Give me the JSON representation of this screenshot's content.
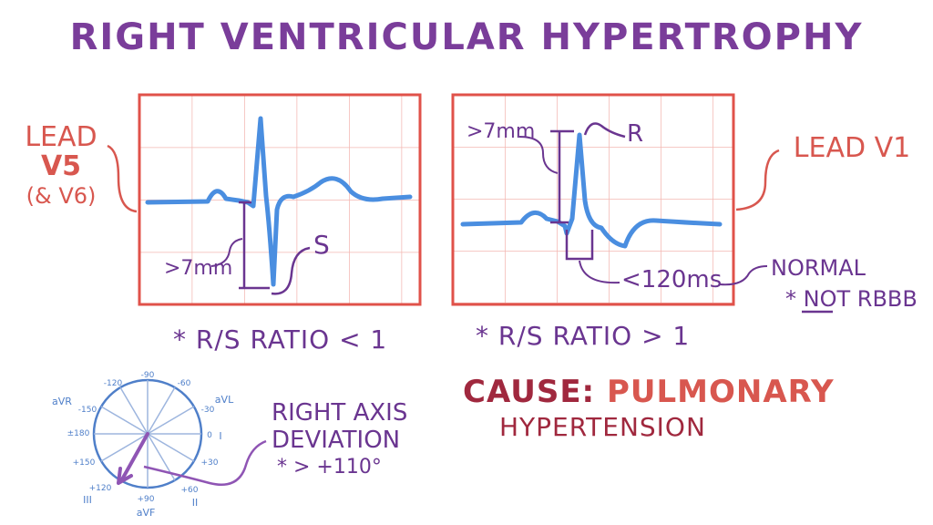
{
  "title": "RIGHT VENTRICULAR HYPERTROPHY",
  "left_panel": {
    "lead_line1": "LEAD",
    "lead_line2": "V5",
    "lead_line3": "(& V6)",
    "measure": ">7mm",
    "wave_label": "S",
    "ratio": "* R/S RATIO < 1"
  },
  "right_panel": {
    "lead": "LEAD V1",
    "measure": ">7mm",
    "wave_label": "R",
    "duration": "<120ms",
    "normal": "NORMAL",
    "not_rbbb": "* NOT RBBB",
    "ratio": "* R/S RATIO > 1"
  },
  "axis": {
    "labels": {
      "avr": "aVR",
      "avl": "aVL",
      "avf": "aVF",
      "lead_i": "I",
      "lead_ii": "II",
      "lead_iii": "III",
      "m90": "-90",
      "m120": "-120",
      "m60": "-60",
      "m30": "-30",
      "pm180": "±180",
      "zero": "0",
      "m150": "-150",
      "p30": "+30",
      "p150": "+150",
      "p120": "+120",
      "p90": "+90",
      "p60": "+60"
    },
    "deviation_line1": "RIGHT AXIS",
    "deviation_line2": "DEVIATION",
    "deviation_line3": "* > +110°"
  },
  "cause": {
    "label": "CAUSE:",
    "value": "PULMONARY",
    "value2": "HYPERTENSION"
  },
  "colors": {
    "grid_border": "#e0524a",
    "grid_line": "#f3b7b2",
    "ecg": "#4a8ee0",
    "purple": "#6a3590",
    "red": "#d8574f",
    "maroon": "#a0283e",
    "axis_blue": "#4f7fc9"
  }
}
